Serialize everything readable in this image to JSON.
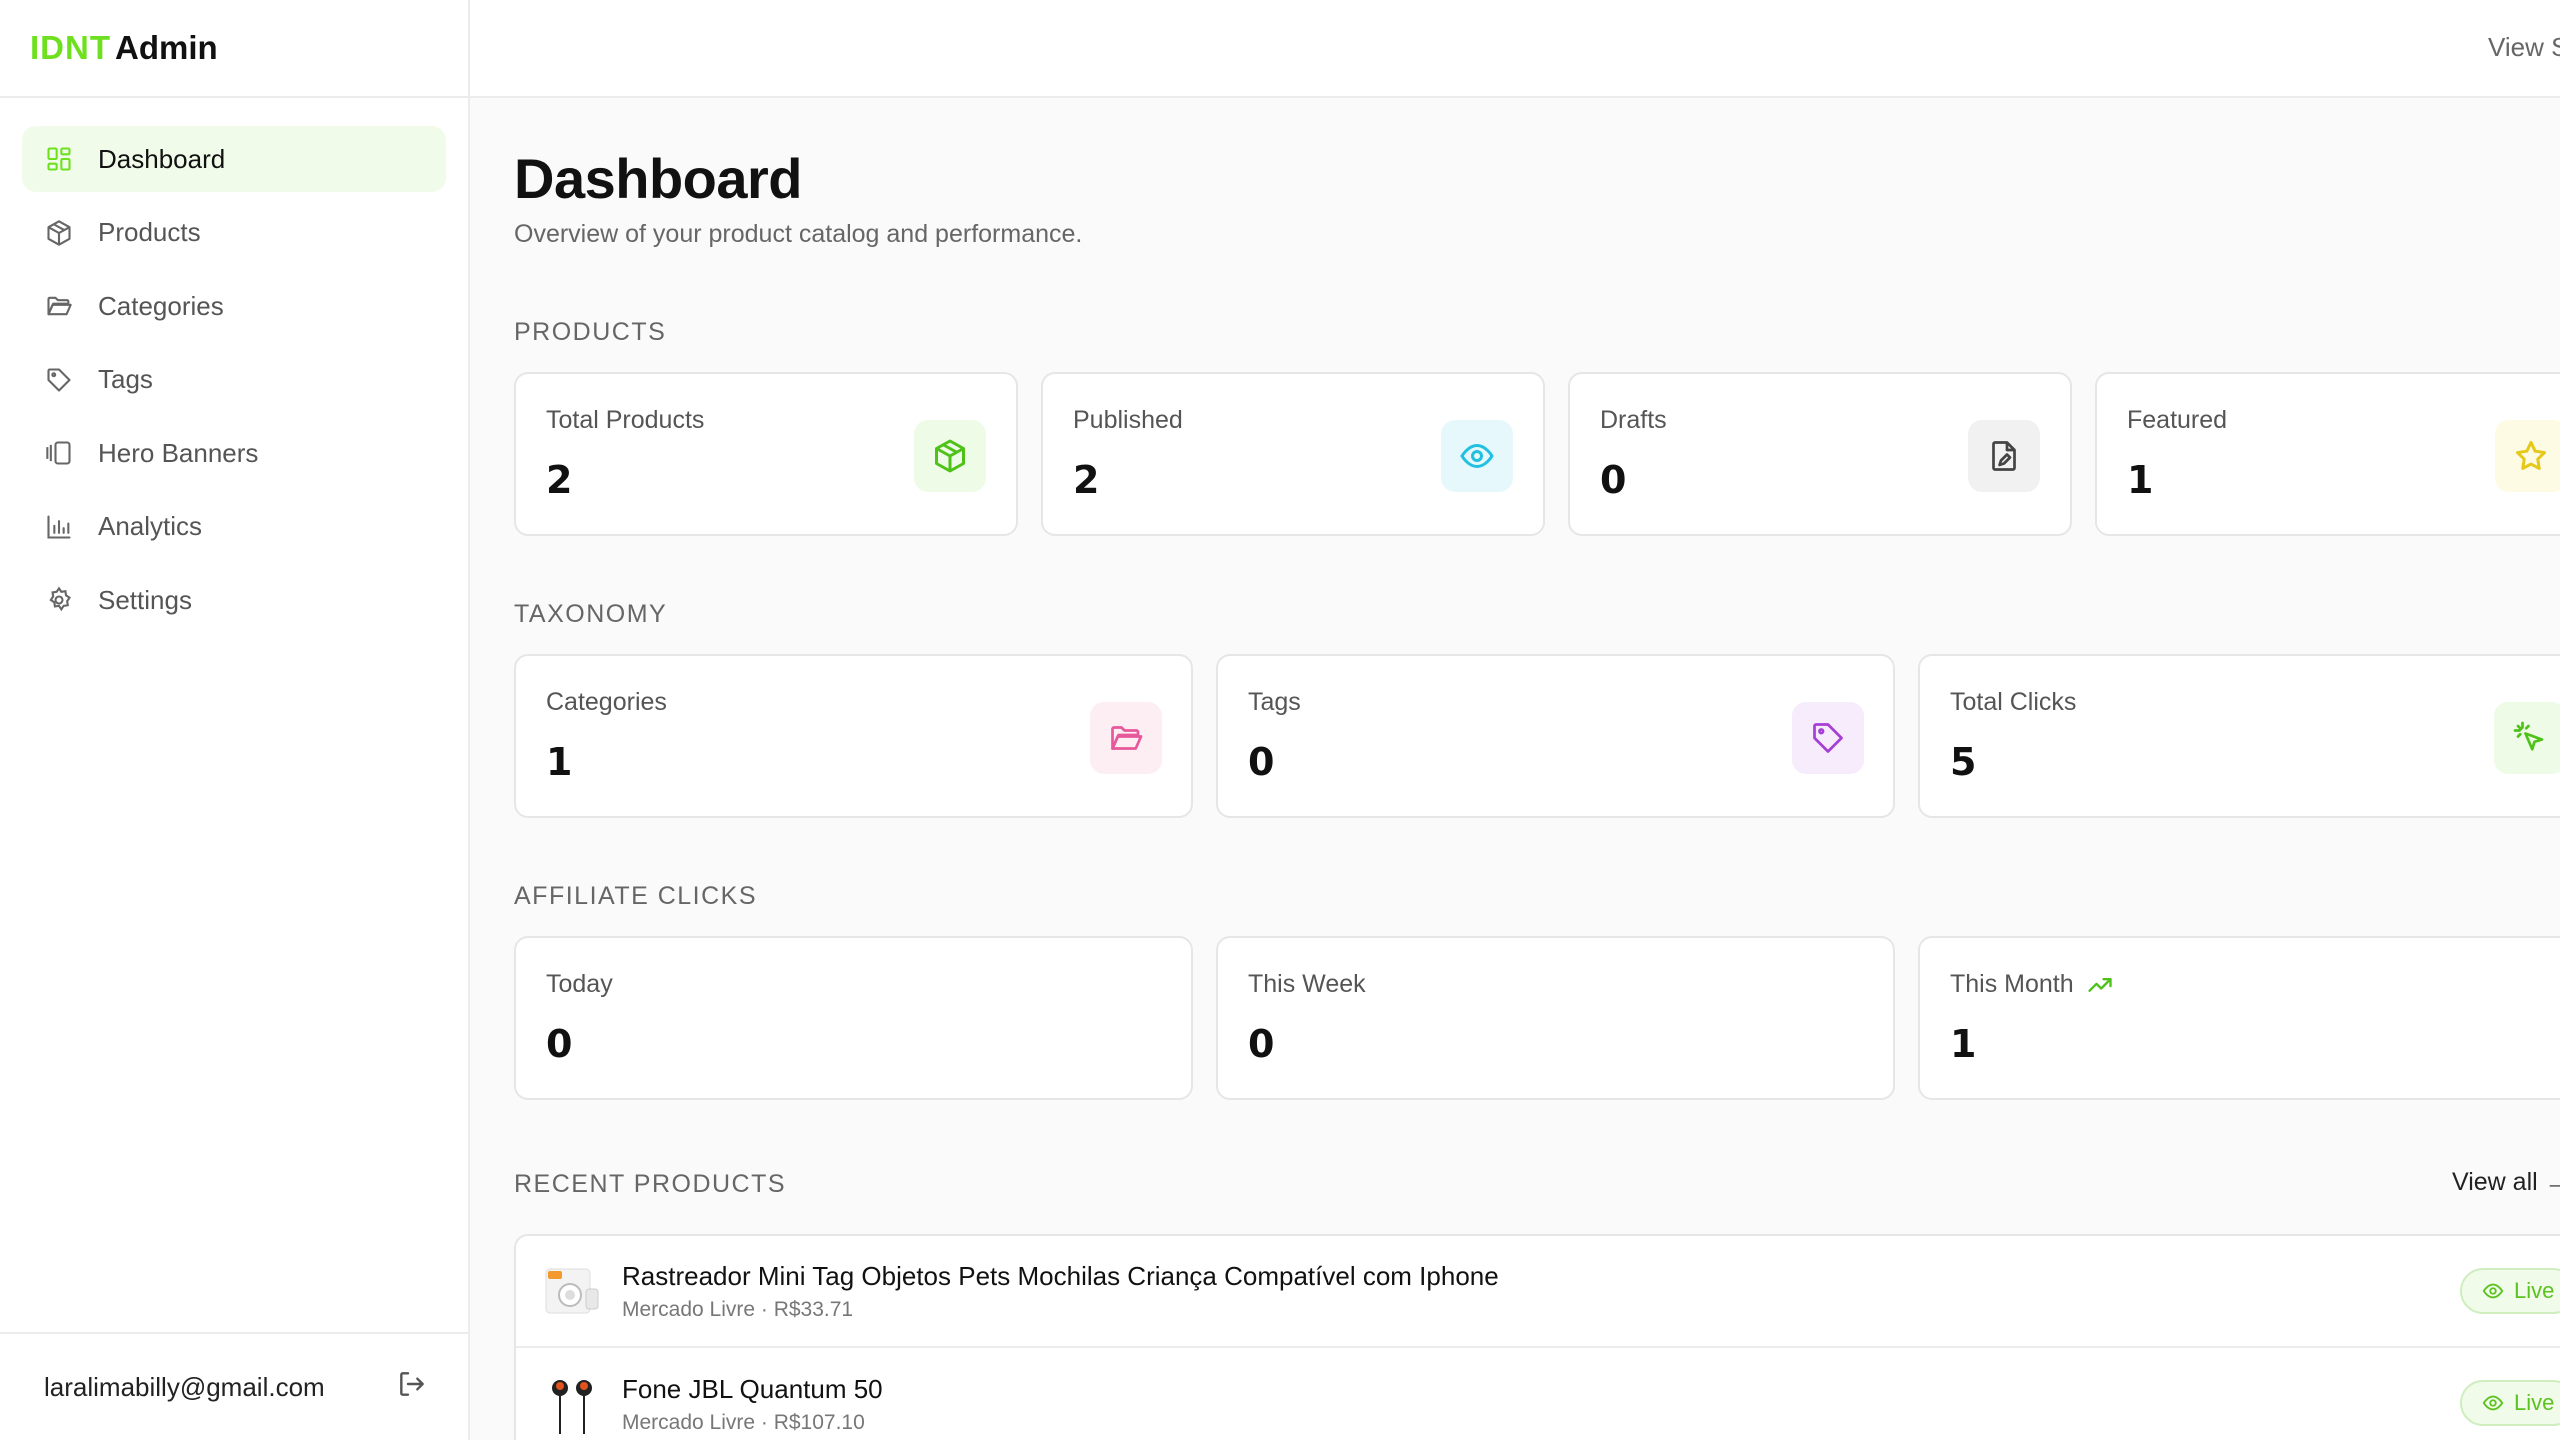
{
  "brand": {
    "part1": "IDNT",
    "part2": "Admin"
  },
  "sidebar": {
    "items": [
      {
        "label": "Dashboard",
        "icon": "dashboard-icon",
        "active": true
      },
      {
        "label": "Products",
        "icon": "package-icon"
      },
      {
        "label": "Categories",
        "icon": "folder-icon"
      },
      {
        "label": "Tags",
        "icon": "tag-icon"
      },
      {
        "label": "Hero Banners",
        "icon": "gallery-icon"
      },
      {
        "label": "Analytics",
        "icon": "bar-chart-icon"
      },
      {
        "label": "Settings",
        "icon": "gear-icon"
      }
    ],
    "user_email": "laralimabilly@gmail.com"
  },
  "topbar": {
    "view_site": "View S"
  },
  "page": {
    "title": "Dashboard",
    "subtitle": "Overview of your product catalog and performance."
  },
  "sections": {
    "products": "PRODUCTS",
    "taxonomy": "TAXONOMY",
    "affiliate": "AFFILIATE CLICKS",
    "recent": "RECENT PRODUCTS"
  },
  "products_stats": [
    {
      "label": "Total Products",
      "value": "2",
      "icon": "package-icon"
    },
    {
      "label": "Published",
      "value": "2",
      "icon": "eye-icon"
    },
    {
      "label": "Drafts",
      "value": "0",
      "icon": "file-edit-icon"
    },
    {
      "label": "Featured",
      "value": "1",
      "icon": "star-icon"
    }
  ],
  "taxonomy_stats": [
    {
      "label": "Categories",
      "value": "1",
      "icon": "folder-open-icon"
    },
    {
      "label": "Tags",
      "value": "0",
      "icon": "tag-icon"
    },
    {
      "label": "Total Clicks",
      "value": "5",
      "icon": "click-icon"
    }
  ],
  "click_stats": [
    {
      "label": "Today",
      "value": "0"
    },
    {
      "label": "This Week",
      "value": "0"
    },
    {
      "label": "This Month",
      "value": "1",
      "icon": "trending-up-icon"
    }
  ],
  "recent": {
    "view_all": "View all",
    "items": [
      {
        "title": "Rastreador Mini Tag Objetos Pets Mochilas Criança Compatível com Iphone",
        "meta": "Mercado Livre · R$33.71",
        "status": "Live"
      },
      {
        "title": "Fone JBL Quantum 50",
        "meta": "Mercado Livre · R$107.10",
        "status": "Live"
      }
    ]
  },
  "colors": {
    "accent": "#6ee01f",
    "green_badge": "#eefbe6",
    "cyan_badge": "#e6f8fc",
    "gray_badge": "#f1f1f1",
    "yellow_badge": "#fdfbe3",
    "pink_badge": "#fdeef4",
    "purple_badge": "#f6ecfb"
  }
}
